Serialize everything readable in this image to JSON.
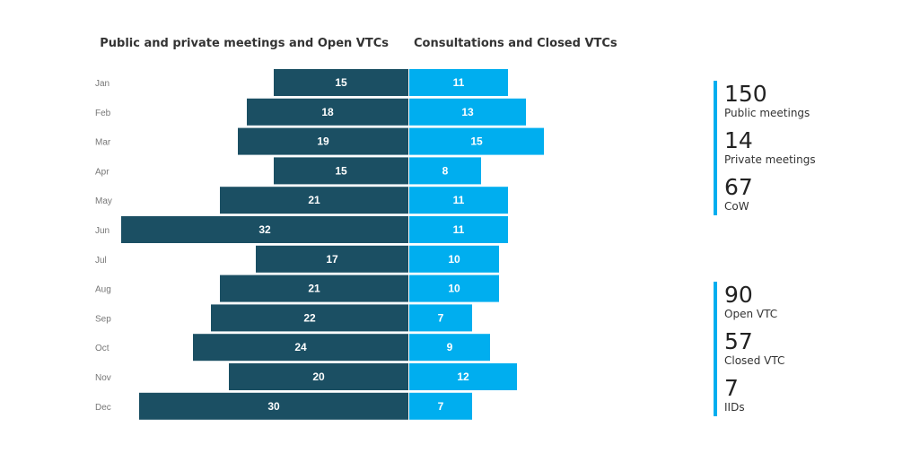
{
  "chart_data": {
    "type": "bar",
    "orientation": "horizontal-diverging",
    "categories": [
      "Jan",
      "Feb",
      "Mar",
      "Apr",
      "May",
      "Jun",
      "Jul",
      "Aug",
      "Sep",
      "Oct",
      "Nov",
      "Dec"
    ],
    "series": [
      {
        "name": "Public and private meetings and Open VTCs",
        "color": "#1b4f63",
        "direction": "left",
        "values": [
          15,
          18,
          19,
          15,
          21,
          32,
          17,
          21,
          22,
          24,
          20,
          30
        ]
      },
      {
        "name": "Consultations and Closed VTCs",
        "color": "#00aeef",
        "direction": "right",
        "values": [
          11,
          13,
          15,
          8,
          11,
          11,
          10,
          10,
          7,
          9,
          12,
          7
        ]
      }
    ],
    "xlim": [
      0,
      32
    ],
    "grid": false,
    "legend": "none"
  },
  "stats": {
    "accent": "#00aeef",
    "group_one": [
      {
        "value": "150",
        "label": "Public meetings"
      },
      {
        "value": "14",
        "label": "Private meetings"
      },
      {
        "value": "67",
        "label": "CoW"
      }
    ],
    "group_two": [
      {
        "value": "90",
        "label": "Open VTC"
      },
      {
        "value": "57",
        "label": "Closed VTC"
      },
      {
        "value": "7",
        "label": "IIDs"
      }
    ]
  }
}
